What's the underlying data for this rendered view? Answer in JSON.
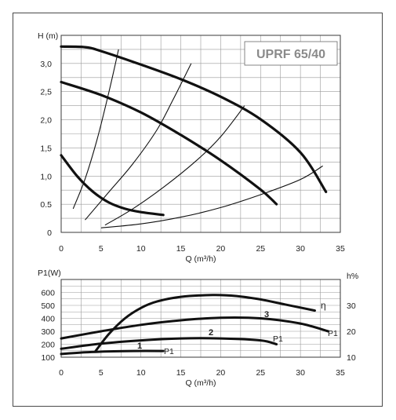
{
  "chart_data": [
    {
      "type": "line",
      "title": "UPRF 65/40",
      "xlabel": "Q (m³/h)",
      "ylabel": "H (m)",
      "xlim": [
        0,
        35
      ],
      "ylim": [
        0,
        3.5
      ],
      "grid": true,
      "x_ticks": [
        "0",
        "5",
        "10",
        "15",
        "20",
        "25",
        "30",
        "35"
      ],
      "y_ticks": [
        "0",
        "0.5",
        "1,0",
        "1,5",
        "2,0",
        "2,5",
        "3,0"
      ],
      "pump_curves": [
        {
          "points": [
            [
              0,
              3.3
            ],
            [
              3,
              3.29
            ],
            [
              5,
              3.22
            ],
            [
              10,
              2.98
            ],
            [
              15,
              2.72
            ],
            [
              20,
              2.41
            ],
            [
              25,
              2.01
            ],
            [
              30,
              1.42
            ],
            [
              33.2,
              0.72
            ]
          ]
        },
        {
          "points": [
            [
              0,
              2.67
            ],
            [
              5,
              2.44
            ],
            [
              10,
              2.13
            ],
            [
              15,
              1.73
            ],
            [
              20,
              1.28
            ],
            [
              25,
              0.76
            ],
            [
              27,
              0.5
            ]
          ]
        },
        {
          "points": [
            [
              0,
              1.37
            ],
            [
              2,
              1.0
            ],
            [
              4,
              0.72
            ],
            [
              6,
              0.53
            ],
            [
              8,
              0.42
            ],
            [
              10,
              0.36
            ],
            [
              12.8,
              0.31
            ]
          ]
        }
      ],
      "system_curves": [
        {
          "points": [
            [
              1.5,
              0.42
            ],
            [
              3,
              0.95
            ],
            [
              4.5,
              1.65
            ],
            [
              6,
              2.5
            ],
            [
              7.2,
              3.25
            ]
          ]
        },
        {
          "points": [
            [
              3,
              0.22
            ],
            [
              6,
              0.72
            ],
            [
              9,
              1.22
            ],
            [
              12,
              1.82
            ],
            [
              14,
              2.35
            ],
            [
              16.3,
              3.0
            ]
          ]
        },
        {
          "points": [
            [
              5.5,
              0.13
            ],
            [
              9,
              0.42
            ],
            [
              13,
              0.82
            ],
            [
              17,
              1.28
            ],
            [
              20,
              1.7
            ],
            [
              23,
              2.25
            ]
          ]
        },
        {
          "points": [
            [
              5,
              0.08
            ],
            [
              10,
              0.15
            ],
            [
              15,
              0.27
            ],
            [
              20,
              0.44
            ],
            [
              25,
              0.67
            ],
            [
              30,
              0.94
            ],
            [
              32.8,
              1.18
            ]
          ]
        }
      ]
    },
    {
      "type": "line",
      "xlabel": "Q (m³/h)",
      "ylabel_left": "P1(W)",
      "ylabel_right": "h%",
      "xlim": [
        0,
        35
      ],
      "ylim_left": [
        100,
        700
      ],
      "ylim_right": [
        10,
        40
      ],
      "grid": true,
      "x_ticks": [
        "0",
        "5",
        "10",
        "15",
        "20",
        "25",
        "30",
        "35"
      ],
      "y_ticks_left": [
        "100",
        "200",
        "300",
        "400",
        "500",
        "600"
      ],
      "y_ticks_right": [
        "10",
        "20",
        "30"
      ],
      "series": [
        {
          "name": "3",
          "curve_label": "P1",
          "axis": "left",
          "x": [
            0,
            5,
            10,
            15,
            20,
            25,
            30,
            33.5
          ],
          "y": [
            245,
            300,
            350,
            385,
            405,
            400,
            360,
            300
          ]
        },
        {
          "name": "2",
          "curve_label": "P1",
          "axis": "left",
          "x": [
            0,
            5,
            10,
            15,
            20,
            25,
            27
          ],
          "y": [
            165,
            205,
            230,
            245,
            245,
            230,
            200
          ]
        },
        {
          "name": "1",
          "curve_label": "P1",
          "axis": "left",
          "x": [
            0,
            3,
            6,
            9,
            12.8
          ],
          "y": [
            125,
            138,
            145,
            148,
            148
          ]
        },
        {
          "name": "η",
          "axis": "right",
          "x": [
            4.3,
            6,
            8,
            10,
            12,
            15,
            19,
            22,
            25,
            28,
            31.8
          ],
          "y": [
            12.3,
            19,
            25,
            29,
            31.5,
            33.3,
            34,
            33.6,
            32.3,
            30.4,
            28
          ]
        }
      ]
    }
  ]
}
